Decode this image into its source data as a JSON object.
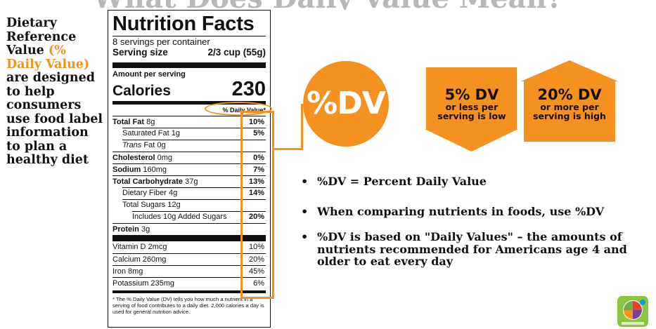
{
  "header": {
    "title": "What Does Daily Value Mean?"
  },
  "left_panel": {
    "line1": "Dietary Reference Value",
    "highlight": "(% Daily Value)",
    "line2": "are designed to help consumers use food label information to plan a healthy diet"
  },
  "nutrition_label": {
    "title": "Nutrition Facts",
    "servings_per_container": "8 servings per container",
    "serving_size_label": "Serving size",
    "serving_size_value": "2/3 cup (55g)",
    "amount_per_serving": "Amount per serving",
    "calories_label": "Calories",
    "calories_value": "230",
    "dv_header": "% Daily Value*",
    "nutrients": [
      {
        "name": "Total Fat",
        "amount": "8g",
        "dv": "10%"
      },
      {
        "name": "Saturated Fat",
        "amount": "1g",
        "dv": "5%"
      },
      {
        "name": "Trans",
        "amount": "Fat 0g",
        "dv": ""
      },
      {
        "name": "Cholesterol",
        "amount": "0mg",
        "dv": "0%"
      },
      {
        "name": "Sodium",
        "amount": "160mg",
        "dv": "7%"
      },
      {
        "name": "Total Carbohydrate",
        "amount": "37g",
        "dv": "13%"
      },
      {
        "name": "Dietary Fiber",
        "amount": "4g",
        "dv": "14%"
      },
      {
        "name": "Total Sugars",
        "amount": "12g",
        "dv": ""
      },
      {
        "name": "Includes 10g Added Sugars",
        "amount": "",
        "dv": "20%"
      },
      {
        "name": "Protein",
        "amount": "3g",
        "dv": ""
      }
    ],
    "vitamins": [
      {
        "name": "Vitamin D 2mcg",
        "dv": "10%"
      },
      {
        "name": "Calcium 260mg",
        "dv": "20%"
      },
      {
        "name": "Iron 8mg",
        "dv": "45%"
      },
      {
        "name": "Potassium 235mg",
        "dv": "6%"
      }
    ],
    "footnote": "* The % Daily Value (DV) tells you how much a nutrient in a serving of food contributes to a daily diet. 2,000 calories a day is used for general nutrition advice."
  },
  "dv_circle": {
    "label": "%DV"
  },
  "arrows": {
    "down": {
      "big": "5% DV",
      "small": "or less per serving is low"
    },
    "up": {
      "big": "20% DV",
      "small": "or more per serving is high"
    }
  },
  "bullets": [
    "%DV = Percent Daily Value",
    "When comparing nutrients in foods, use %DV",
    "%DV is based on \"Daily Values\" – the amounts of nutrients recommended for Americans age 4 and older to eat every day"
  ],
  "colors": {
    "accent": "#f5911e",
    "text": "#111111"
  },
  "logo": {
    "icon": "myplate-logo-icon"
  }
}
